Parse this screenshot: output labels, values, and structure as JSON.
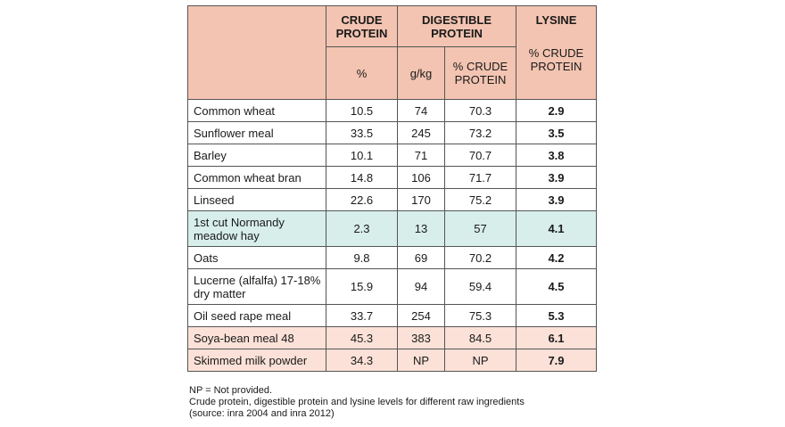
{
  "header": {
    "crude_protein": "CRUDE PROTEIN",
    "digestible_protein": "DIGESTIBLE PROTEIN",
    "lysine": "LYSINE",
    "sub_percent": "%",
    "sub_gkg": "g/kg",
    "sub_pct_crude_protein": "% CRUDE PROTEIN",
    "lysine_sub": "% CRUDE PROTEIN"
  },
  "rows": [
    {
      "name": "Common wheat",
      "crude_protein": "10.5",
      "dp_gkg": "74",
      "dp_pct": "70.3",
      "lysine": "2.9"
    },
    {
      "name": "Sunflower meal",
      "crude_protein": "33.5",
      "dp_gkg": "245",
      "dp_pct": "73.2",
      "lysine": "3.5"
    },
    {
      "name": "Barley",
      "crude_protein": "10.1",
      "dp_gkg": "71",
      "dp_pct": "70.7",
      "lysine": "3.8"
    },
    {
      "name": "Common wheat bran",
      "crude_protein": "14.8",
      "dp_gkg": "106",
      "dp_pct": "71.7",
      "lysine": "3.9"
    },
    {
      "name": "Linseed",
      "crude_protein": "22.6",
      "dp_gkg": "170",
      "dp_pct": "75.2",
      "lysine": "3.9"
    },
    {
      "name": "1st cut Normandy meadow hay",
      "crude_protein": "2.3",
      "dp_gkg": "13",
      "dp_pct": "57",
      "lysine": "4.1"
    },
    {
      "name": "Oats",
      "crude_protein": "9.8",
      "dp_gkg": "69",
      "dp_pct": "70.2",
      "lysine": "4.2"
    },
    {
      "name": "Lucerne (alfalfa) 17-18% dry matter",
      "crude_protein": "15.9",
      "dp_gkg": "94",
      "dp_pct": "59.4",
      "lysine": "4.5"
    },
    {
      "name": "Oil seed rape meal",
      "crude_protein": "33.7",
      "dp_gkg": "254",
      "dp_pct": "75.3",
      "lysine": "5.3"
    },
    {
      "name": "Soya-bean meal 48",
      "crude_protein": "45.3",
      "dp_gkg": "383",
      "dp_pct": "84.5",
      "lysine": "6.1"
    },
    {
      "name": "Skimmed milk powder",
      "crude_protein": "34.3",
      "dp_gkg": "NP",
      "dp_pct": "NP",
      "lysine": "7.9"
    }
  ],
  "footnotes": {
    "np": "NP = Not provided.",
    "caption": "Crude protein, digestible protein and lysine levels for different raw ingredients",
    "source": "(source: inra 2004 and inra 2012)"
  },
  "colors": {
    "header_bg": "#f3c4b1",
    "highlight_blue": "#d7eeeb",
    "highlight_pink": "#fbe1d7"
  }
}
